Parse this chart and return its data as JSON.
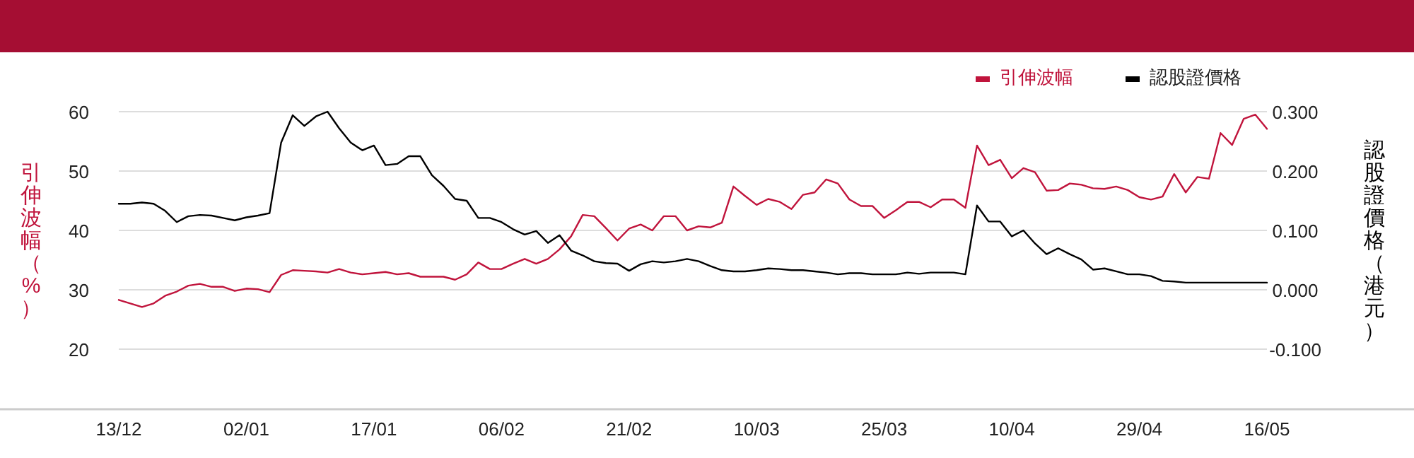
{
  "chart_data": {
    "type": "line",
    "categories": [
      "13/12",
      null,
      null,
      null,
      null,
      null,
      null,
      null,
      null,
      null,
      null,
      "02/01",
      null,
      null,
      null,
      null,
      null,
      null,
      null,
      null,
      null,
      null,
      "17/01",
      null,
      null,
      null,
      null,
      null,
      null,
      null,
      null,
      null,
      null,
      "06/02",
      null,
      null,
      null,
      null,
      null,
      null,
      null,
      null,
      null,
      null,
      "21/02",
      null,
      null,
      null,
      null,
      null,
      null,
      null,
      null,
      null,
      null,
      "10/03",
      null,
      null,
      null,
      null,
      null,
      null,
      null,
      null,
      null,
      null,
      "25/03",
      null,
      null,
      null,
      null,
      null,
      null,
      null,
      null,
      null,
      null,
      "10/04",
      null,
      null,
      null,
      null,
      null,
      null,
      null,
      null,
      null,
      null,
      "29/04",
      null,
      null,
      null,
      null,
      null,
      null,
      null,
      null,
      null,
      null,
      "16/05"
    ],
    "series": [
      {
        "name": "引伸波幅",
        "color": "#c0143c",
        "values": [
          28.3,
          27.7,
          27.1,
          27.7,
          29.0,
          29.7,
          30.7,
          31.0,
          30.5,
          30.5,
          29.8,
          30.2,
          30.1,
          29.6,
          32.5,
          33.3,
          33.2,
          33.1,
          32.9,
          33.5,
          32.9,
          32.6,
          32.8,
          33.0,
          32.6,
          32.8,
          32.2,
          32.2,
          32.2,
          31.7,
          32.6,
          34.6,
          33.5,
          33.5,
          34.4,
          35.2,
          34.4,
          35.2,
          36.8,
          39.0,
          42.6,
          42.4,
          40.4,
          38.3,
          40.3,
          41.0,
          40.0,
          42.4,
          42.4,
          40.0,
          40.7,
          40.5,
          41.3,
          47.4,
          45.8,
          44.3,
          45.3,
          44.8,
          43.6,
          46.0,
          46.4,
          48.6,
          47.9,
          45.2,
          44.1,
          44.1,
          42.1,
          43.4,
          44.8,
          44.8,
          43.9,
          45.2,
          45.2,
          43.8,
          54.3,
          51.0,
          51.9,
          48.8,
          50.5,
          49.8,
          46.7,
          46.8,
          47.9,
          47.7,
          47.1,
          47.0,
          47.4,
          46.8,
          45.6,
          45.2,
          45.7,
          49.5,
          46.4,
          49.0,
          48.7,
          56.4,
          54.4,
          58.8,
          59.5,
          57.1
        ]
      },
      {
        "name": "認股證價格",
        "color": "#000000",
        "axis": "y2",
        "values": [
          0.145,
          0.145,
          0.147,
          0.145,
          0.133,
          0.114,
          0.124,
          0.126,
          0.125,
          0.121,
          0.117,
          0.122,
          0.125,
          0.129,
          0.248,
          0.294,
          0.276,
          0.292,
          0.3,
          0.272,
          0.248,
          0.235,
          0.243,
          0.21,
          0.212,
          0.225,
          0.225,
          0.193,
          0.175,
          0.153,
          0.15,
          0.121,
          0.121,
          0.114,
          0.102,
          0.093,
          0.099,
          0.079,
          0.092,
          0.066,
          0.058,
          0.048,
          0.045,
          0.044,
          0.032,
          0.043,
          0.048,
          0.046,
          0.048,
          0.052,
          0.048,
          0.04,
          0.033,
          0.031,
          0.031,
          0.033,
          0.036,
          0.035,
          0.033,
          0.033,
          0.031,
          0.029,
          0.026,
          0.028,
          0.028,
          0.026,
          0.026,
          0.026,
          0.029,
          0.027,
          0.029,
          0.029,
          0.029,
          0.026,
          0.142,
          0.115,
          0.115,
          0.09,
          0.1,
          0.078,
          0.06,
          0.07,
          0.06,
          0.051,
          0.034,
          0.036,
          0.031,
          0.026,
          0.026,
          0.023,
          0.015,
          0.014,
          0.012,
          0.012,
          0.012,
          0.012,
          0.012,
          0.012,
          0.012,
          0.012
        ]
      }
    ],
    "ylabel": "引伸波幅（%）",
    "y2label": "認股證價格（港元）",
    "ylim": [
      10,
      60
    ],
    "yticks": [
      20,
      30,
      40,
      50,
      60
    ],
    "y2lim": [
      -0.2,
      0.3
    ],
    "y2ticks": [
      {
        "value": -0.1,
        "label": "-0.100"
      },
      {
        "value": 0,
        "label": "0.000"
      },
      {
        "value": 0.1,
        "label": "0.100"
      },
      {
        "value": 0.2,
        "label": "0.200"
      },
      {
        "value": 0.3,
        "label": "0.300"
      }
    ],
    "grid": "y",
    "legend": "top right",
    "marker": "none",
    "line_style": "solid"
  }
}
